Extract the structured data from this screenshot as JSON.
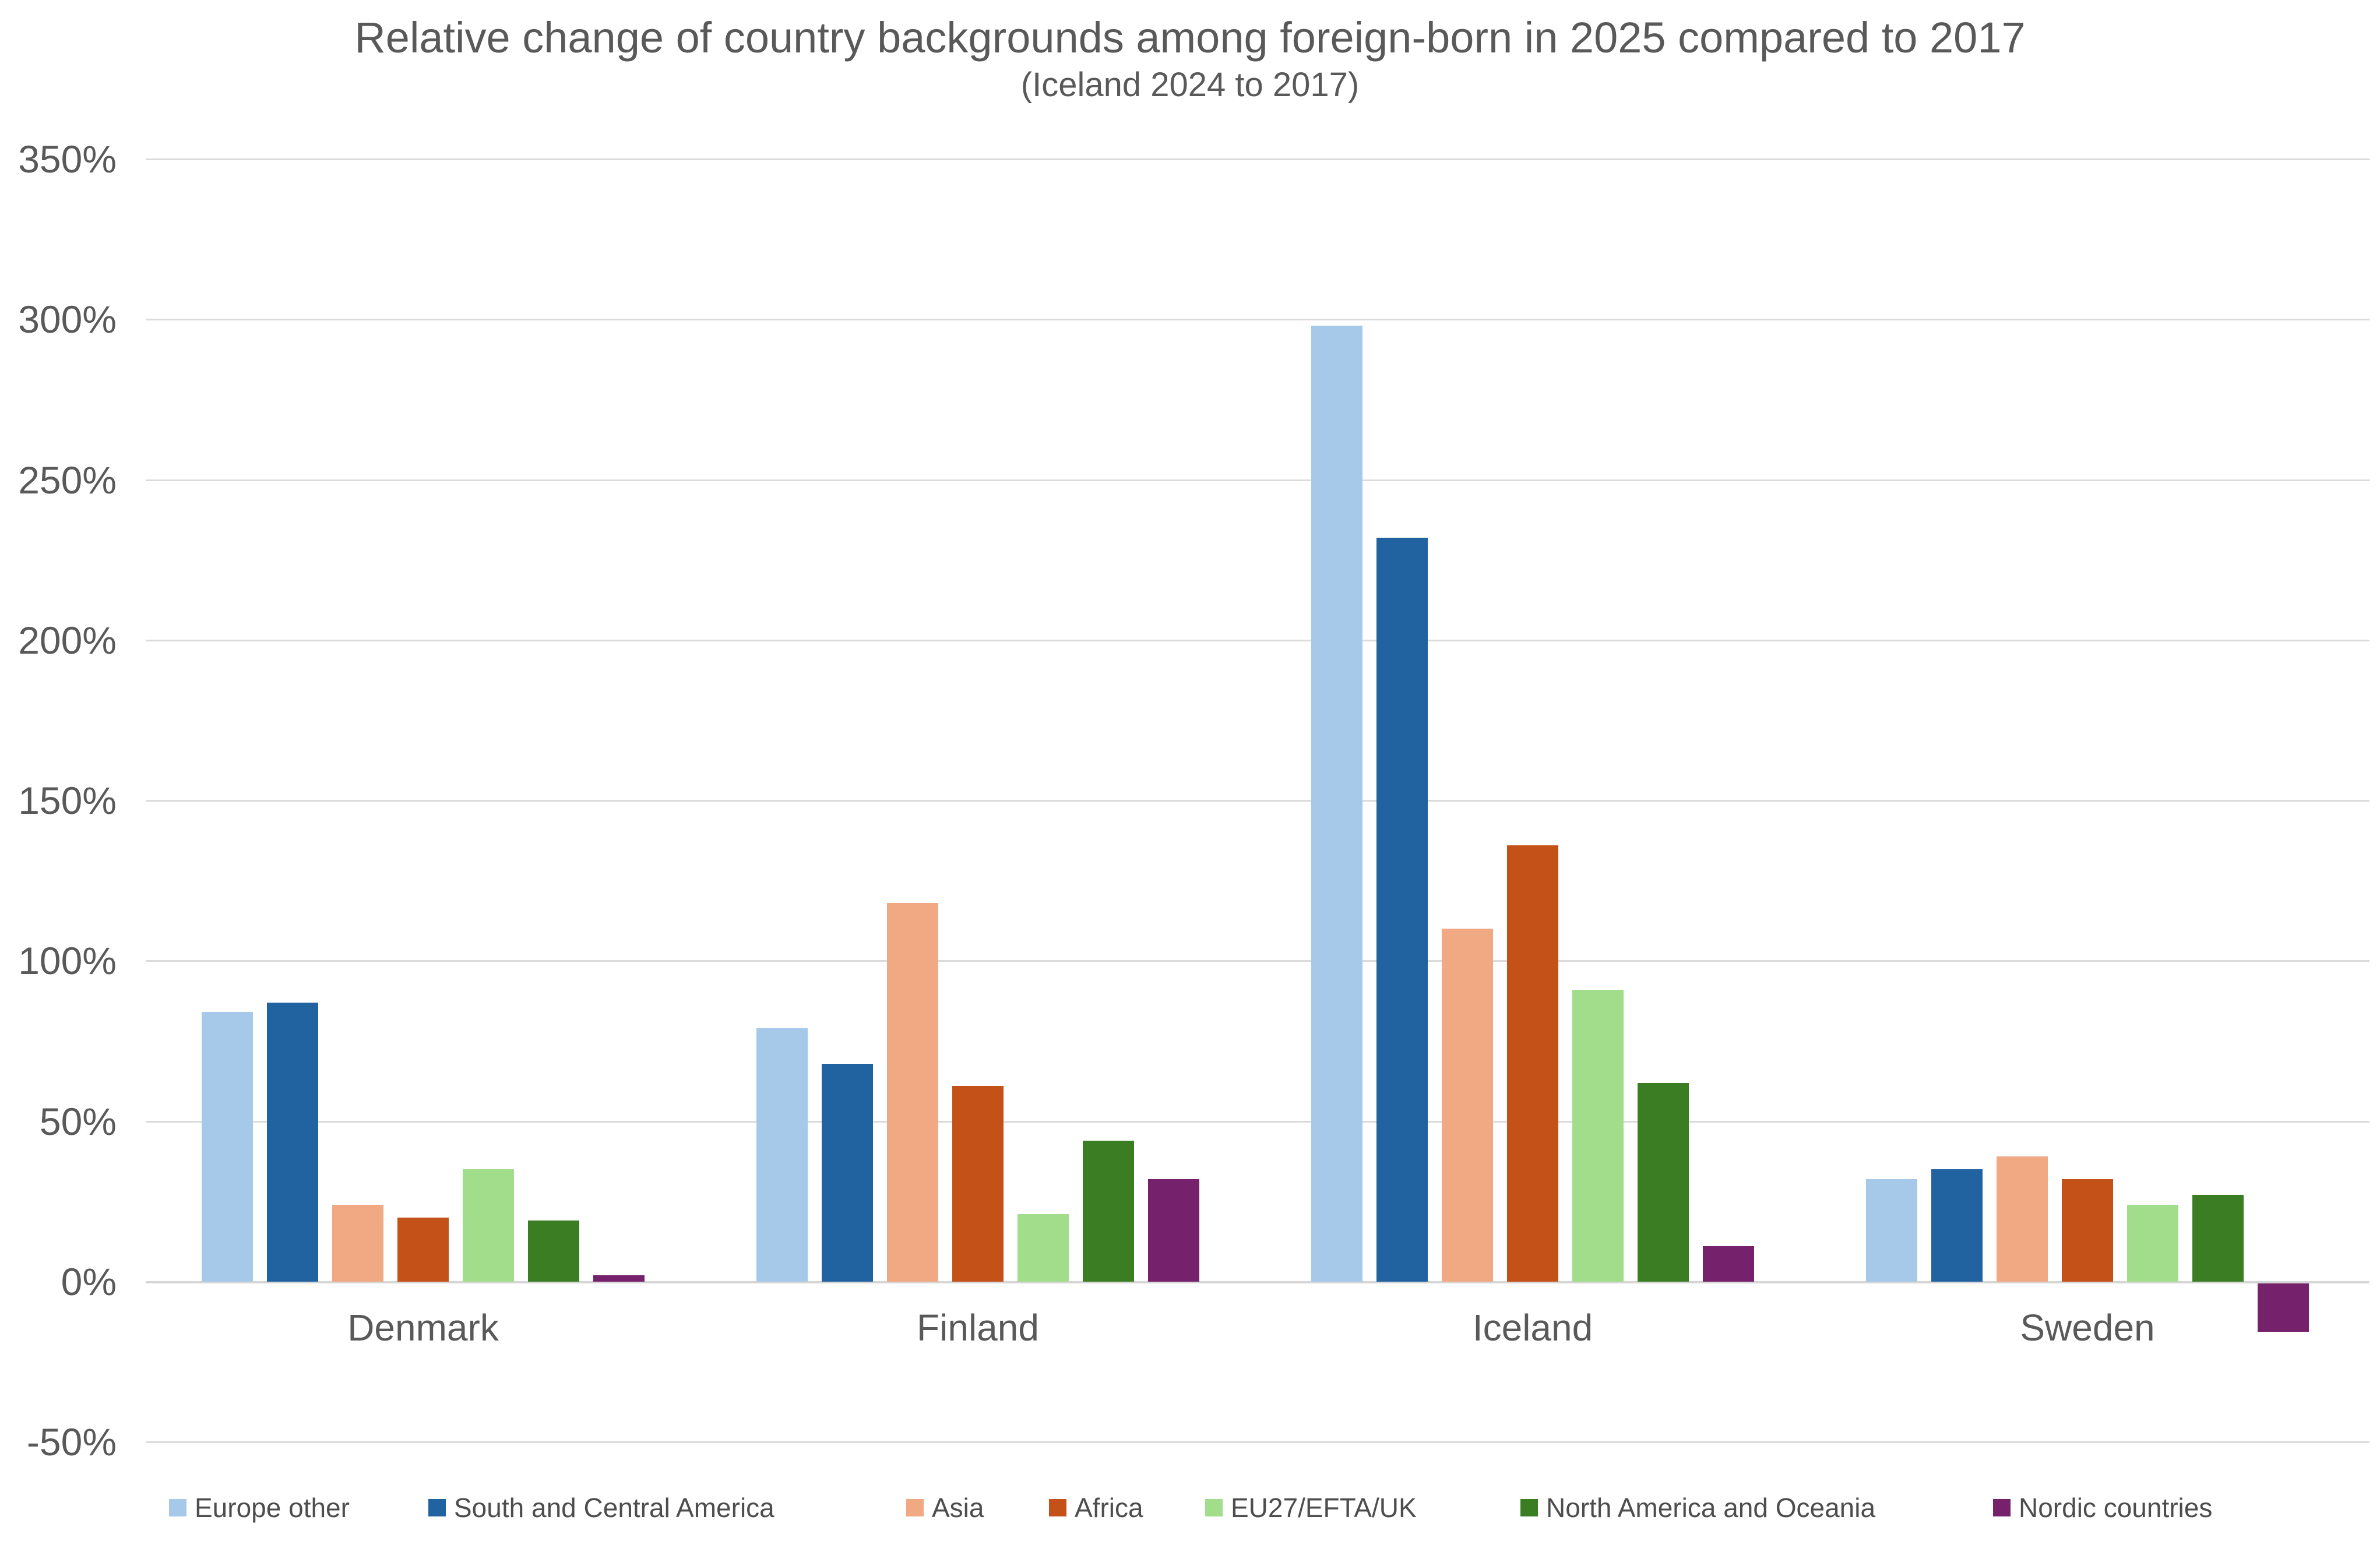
{
  "title": "Relative change of country backgrounds among foreign-born in 2025 compared to 2017",
  "subtitle": "(Iceland 2024 to 2017)",
  "chart_data": {
    "type": "bar",
    "categories": [
      "Denmark",
      "Finland",
      "Iceland",
      "Sweden"
    ],
    "series": [
      {
        "name": "Europe other",
        "color": "#A6C9EA",
        "values": [
          84,
          79,
          298,
          32
        ]
      },
      {
        "name": "South and Central America",
        "color": "#2162A0",
        "values": [
          87,
          68,
          232,
          35
        ]
      },
      {
        "name": "Asia",
        "color": "#F1A983",
        "values": [
          24,
          118,
          110,
          39
        ]
      },
      {
        "name": "Africa",
        "color": "#C35118",
        "values": [
          20,
          61,
          136,
          32
        ]
      },
      {
        "name": "EU27/EFTA/UK",
        "color": "#A2DD8C",
        "values": [
          35,
          21,
          91,
          24
        ]
      },
      {
        "name": "North America and Oceania",
        "color": "#3A7D22",
        "values": [
          19,
          44,
          62,
          27
        ]
      },
      {
        "name": "Nordic countries",
        "color": "#76216B",
        "values": [
          2,
          32,
          11,
          -15
        ]
      }
    ],
    "xlabel": "",
    "ylabel": "",
    "ylim": [
      -50,
      350
    ],
    "ytick_step": 50,
    "ytick_labels": [
      "350%",
      "300%",
      "250%",
      "200%",
      "150%",
      "100%",
      "50%",
      "0%",
      "-50%"
    ],
    "grid": "horizontal",
    "legend_position": "bottom",
    "legend_entries": [
      "Europe other",
      "South and Central America",
      "Asia",
      "Africa",
      "EU27/EFTA/UK",
      "North America and Oceania",
      "Nordic countries"
    ]
  },
  "colors": {
    "background": "#FFFFFF",
    "text": "#595959",
    "gridline": "#DBDBDB",
    "zero_axis": "#D6D6D6"
  }
}
